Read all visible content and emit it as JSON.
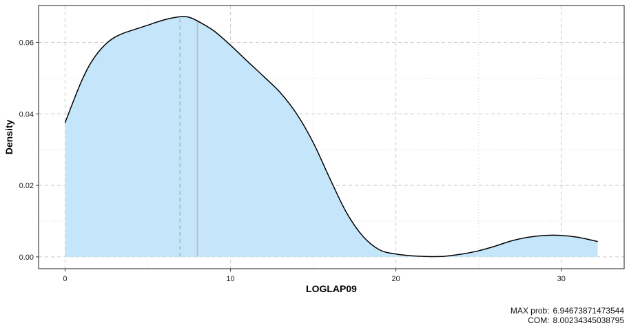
{
  "chart_data": {
    "type": "area",
    "xlabel": "LOGLAP09",
    "ylabel": "Density",
    "xlim": [
      -1.6,
      33.8
    ],
    "ylim": [
      -0.0033,
      0.0703
    ],
    "x_ticks": [
      0,
      10,
      20,
      30
    ],
    "x_tick_labels": [
      "0",
      "10",
      "20",
      "30"
    ],
    "y_ticks": [
      0.0,
      0.02,
      0.04,
      0.06
    ],
    "y_tick_labels": [
      "0.00",
      "0.02",
      "0.04",
      "0.06"
    ],
    "x_minor_ticks": [
      5,
      15,
      25
    ],
    "y_minor_ticks": [
      0.01,
      0.03,
      0.05
    ],
    "grid": true,
    "legend": "none",
    "series": [
      {
        "x": [
          0,
          0.5,
          1,
          1.5,
          2,
          2.5,
          3,
          3.5,
          4,
          5,
          6,
          7,
          7.5,
          8,
          9,
          10,
          11,
          12,
          13,
          14,
          15,
          16,
          17,
          18,
          19,
          20,
          21,
          22,
          22.5,
          23,
          24,
          25,
          26,
          27,
          28,
          29,
          30,
          31,
          32.2
        ],
        "y": [
          0.0375,
          0.0435,
          0.0492,
          0.0538,
          0.0572,
          0.0597,
          0.0614,
          0.0625,
          0.0633,
          0.0648,
          0.0663,
          0.0672,
          0.067,
          0.066,
          0.0632,
          0.0592,
          0.0548,
          0.0505,
          0.046,
          0.04,
          0.032,
          0.022,
          0.0125,
          0.0058,
          0.002,
          0.0008,
          0.0003,
          0.0001,
          0.0001,
          0.0002,
          0.0008,
          0.0017,
          0.003,
          0.0045,
          0.0055,
          0.006,
          0.006,
          0.0055,
          0.0043
        ]
      }
    ],
    "vlines": [
      {
        "x": 6.94673871473544,
        "style": "dashed"
      },
      {
        "x": 8.00234345038795,
        "style": "solid"
      }
    ],
    "colors": {
      "fill": "#c5e6fa",
      "line": "#000000",
      "vline": "#bdbdbd",
      "grid": "#c8c8c8"
    }
  },
  "caption": {
    "rows": [
      {
        "label": "MAX prob:",
        "value": "6.94673871473544"
      },
      {
        "label": "COM:",
        "value": "8.00234345038795"
      }
    ]
  }
}
